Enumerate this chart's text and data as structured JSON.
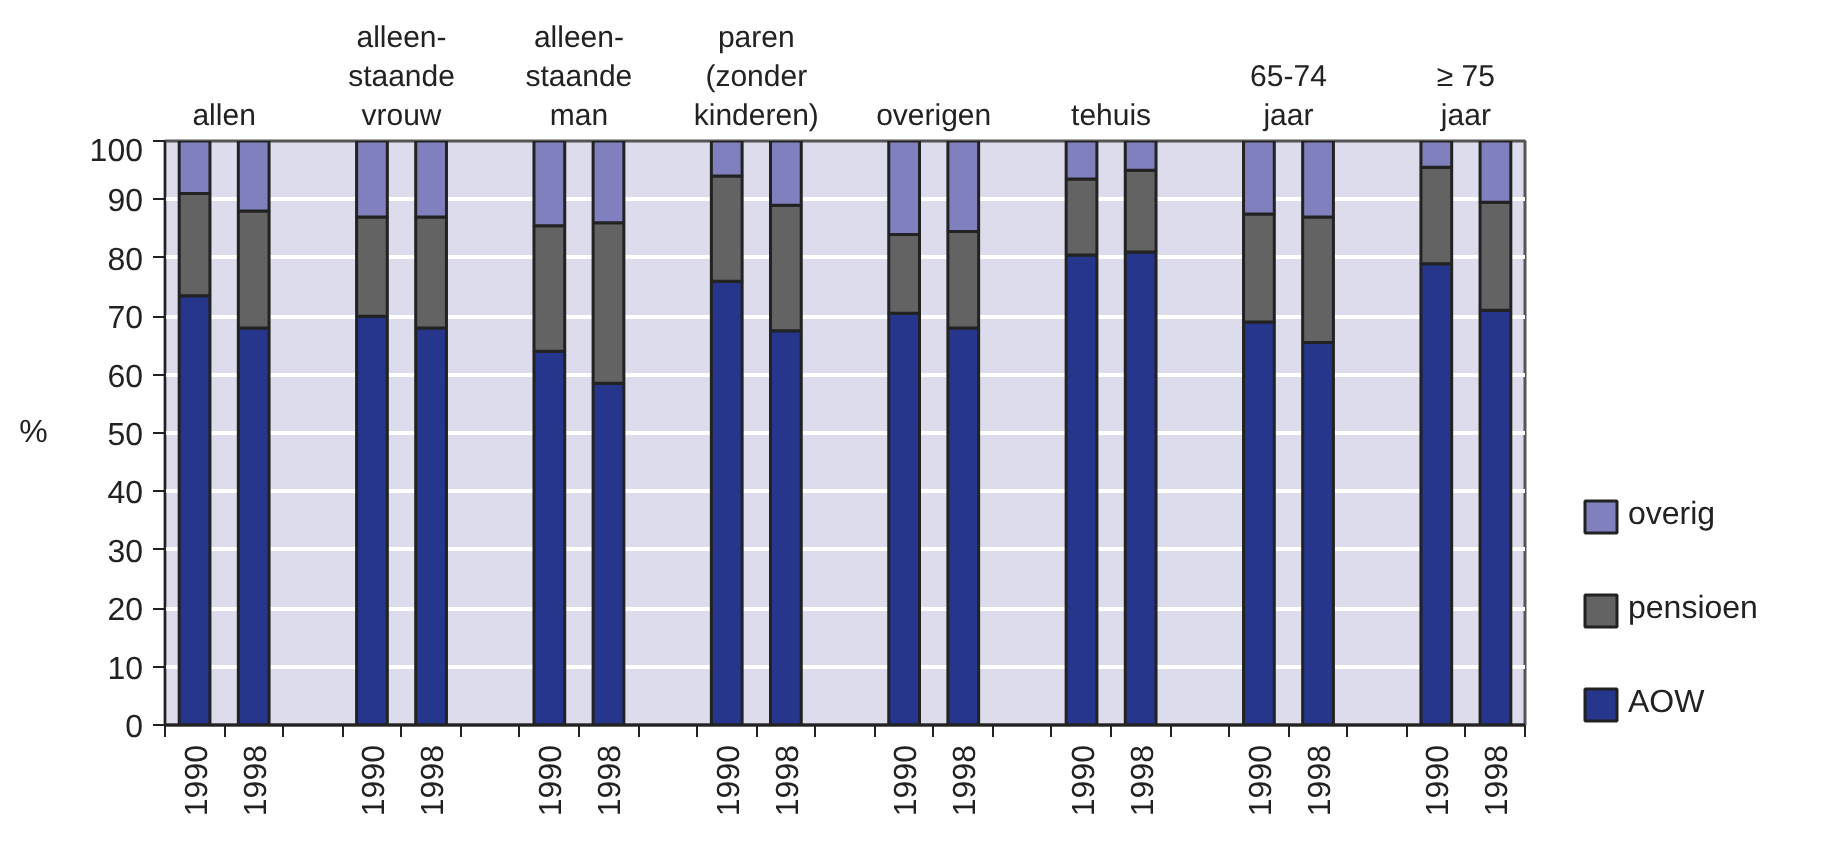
{
  "chart_data": {
    "type": "bar",
    "stacked": true,
    "categories": [
      "1990",
      "1998",
      null,
      "1990",
      "1998",
      null,
      "1990",
      "1998",
      null,
      "1990",
      "1998",
      null,
      "1990",
      "1998",
      null,
      "1990",
      "1998",
      null,
      "1990",
      "1998",
      null,
      "1990",
      "1998"
    ],
    "series": [
      {
        "name": "AOW",
        "color": "#25368c",
        "values": [
          73.5,
          68,
          null,
          70,
          68,
          null,
          64,
          58.5,
          null,
          76,
          67.5,
          null,
          70.5,
          68,
          null,
          80.5,
          81,
          null,
          69,
          65.5,
          null,
          79,
          71
        ]
      },
      {
        "name": "pensioen",
        "color": "#636363",
        "values": [
          17.5,
          20,
          null,
          17,
          19,
          null,
          21.5,
          27.5,
          null,
          18,
          21.5,
          null,
          13.5,
          16.5,
          null,
          13,
          14,
          null,
          18.5,
          21.5,
          null,
          16.5,
          18.5
        ]
      },
      {
        "name": "overig",
        "color": "#8080bf",
        "values": [
          9,
          12,
          null,
          13,
          13,
          null,
          14.5,
          14,
          null,
          6,
          11,
          null,
          16,
          15.5,
          null,
          6.5,
          5,
          null,
          12.5,
          13,
          null,
          4.5,
          10.5
        ]
      }
    ],
    "ylabel": "%",
    "ylim": [
      0,
      100
    ],
    "yticks": [
      0,
      10,
      20,
      30,
      40,
      50,
      60,
      70,
      80,
      90,
      100
    ],
    "grid": "y",
    "legend": "right",
    "annotations": [
      "allen",
      "alleen-\nstaande\nvrouw",
      "alleen-\nstaande\nman",
      "paren\n(zonder\nkinderen)",
      "overigen",
      "tehuis",
      "65-74\njaar",
      "≥ 75\njaar"
    ]
  }
}
